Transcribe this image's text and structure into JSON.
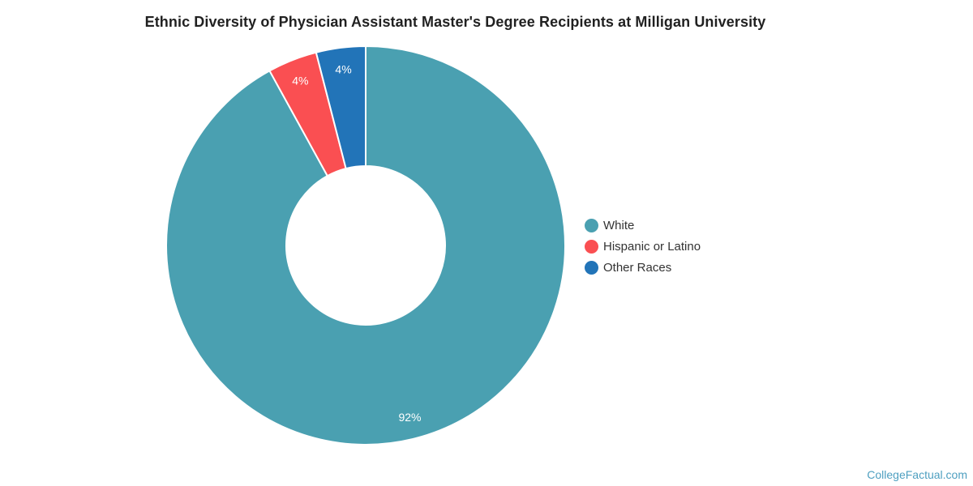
{
  "title": {
    "text": "Ethnic Diversity of Physician Assistant Master's Degree Recipients at Milligan University"
  },
  "chart_data": {
    "type": "pie",
    "title": "Ethnic Diversity of Physician Assistant Master's Degree Recipients at Milligan University",
    "labels": [
      "White",
      "Hispanic or Latino",
      "Other Races"
    ],
    "values": [
      92,
      4,
      4
    ],
    "unit": "%",
    "data_labels": [
      "92%",
      "4%",
      "4%"
    ],
    "colors": [
      "#4AA0B1",
      "#FA4F52",
      "#2274B8"
    ],
    "data_label_color": "#FFFFFF",
    "donut_hole_ratio": 0.4,
    "start_angle_deg": 0,
    "clockwise": true,
    "legend_position": "right",
    "background": "#FFFFFF"
  },
  "legend": {
    "items": [
      {
        "label": "White",
        "color": "#4AA0B1"
      },
      {
        "label": "Hispanic or Latino",
        "color": "#FA4F52"
      },
      {
        "label": "Other Races",
        "color": "#2274B8"
      }
    ]
  },
  "watermark": {
    "text": "CollegeFactual.com",
    "color": "#4E9FC0"
  }
}
